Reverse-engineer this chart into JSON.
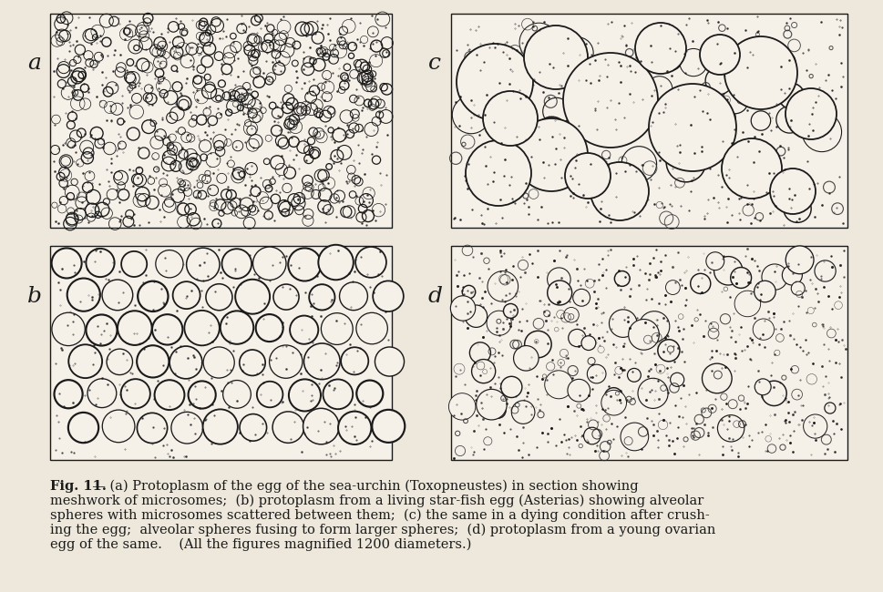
{
  "bg_color": "#ede8db",
  "panel_bg": "#f5f0e8",
  "ink": "#1a1a1a",
  "figsize": [
    9.7,
    6.5
  ],
  "dpi": 100,
  "panels": {
    "a": [
      55,
      15,
      375,
      235
    ],
    "b": [
      55,
      270,
      375,
      235
    ],
    "c": [
      495,
      15,
      435,
      235
    ],
    "d": [
      495,
      270,
      435,
      235
    ]
  },
  "caption": [
    [
      "bold",
      "Fig. 11."
    ],
    [
      "normal",
      " — ("
    ],
    [
      "italic",
      "a"
    ],
    [
      "normal",
      ") Protoplasm of the egg of the sea-urchin ("
    ],
    [
      "italic",
      "Toxopneustes"
    ],
    [
      "normal",
      ") in section showing"
    ]
  ],
  "caption_lines": [
    "Fig. 11. — (a) Protoplasm of the egg of the sea-urchin (Toxopneustes) in section showing",
    "meshwork of microsomes;  (b) protoplasm from a living star-fish egg (Asterias) showing alveolar",
    "spheres with microsomes scattered between them;  (c) the same in a dying condition after crush-",
    "ing the egg;  alveolar spheres fusing to form larger spheres;  (d) protoplasm from a young ovarian",
    "egg of the same.    (All the figures magnified 1200 diameters.)"
  ]
}
